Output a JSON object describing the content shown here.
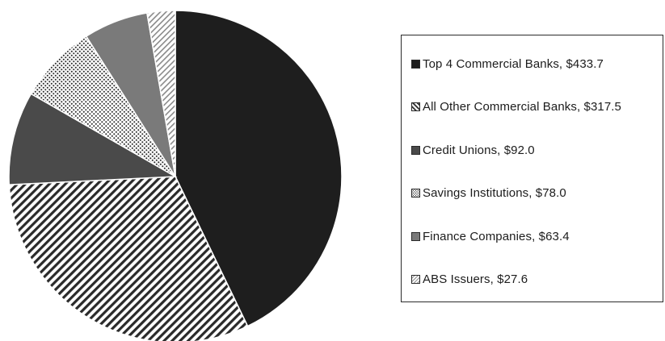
{
  "chart_data": {
    "type": "pie",
    "title": "",
    "legend_position": "right",
    "slices": [
      {
        "name": "Top 4 Commercial Banks",
        "value": 433.7,
        "label": "Top 4 Commercial Banks, $433.7",
        "pattern": "solid-dark",
        "color": "#1e1e1e"
      },
      {
        "name": "All Other Commercial Banks",
        "value": 317.5,
        "label": "All Other Commercial Banks, $317.5",
        "pattern": "diagonal-hatch",
        "color": "#2a2a2a"
      },
      {
        "name": "Credit Unions",
        "value": 92.0,
        "label": "Credit Unions, $92.0",
        "pattern": "solid-medium",
        "color": "#4a4a4a"
      },
      {
        "name": "Savings Institutions",
        "value": 78.0,
        "label": "Savings Institutions, $78.0",
        "pattern": "dots",
        "color": "#3a3a3a"
      },
      {
        "name": "Finance Companies",
        "value": 63.4,
        "label": "Finance Companies, $63.4",
        "pattern": "solid-gray",
        "color": "#7a7a7a"
      },
      {
        "name": "ABS Issuers",
        "value": 27.6,
        "label": "ABS Issuers, $27.6",
        "pattern": "light-hatch",
        "color": "#9a9a9a"
      }
    ]
  }
}
